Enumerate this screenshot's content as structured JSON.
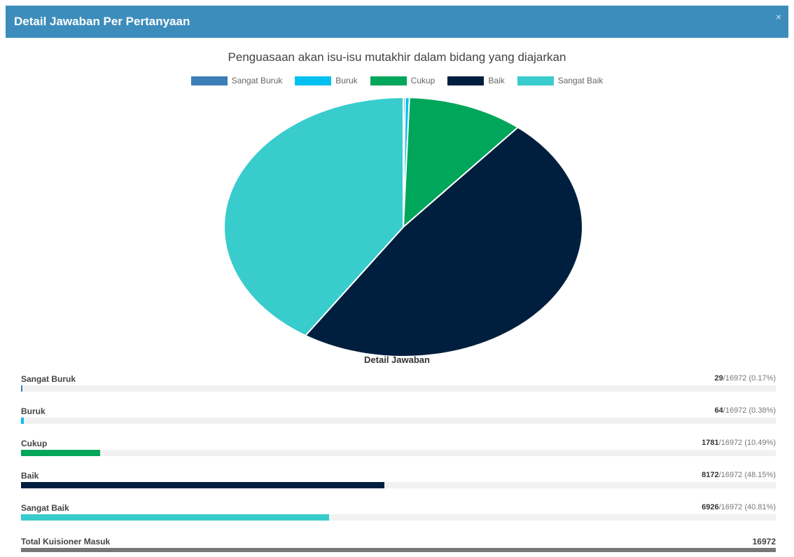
{
  "modal": {
    "title": "Detail Jawaban Per Pertanyaan",
    "close_label": "×"
  },
  "chart_data": {
    "type": "pie",
    "title": "Penguasaan akan isu-isu mutakhir dalam bidang yang diajarkan",
    "legend_position": "top",
    "categories": [
      "Sangat Buruk",
      "Buruk",
      "Cukup",
      "Baik",
      "Sangat Baik"
    ],
    "values": [
      29,
      64,
      1781,
      8172,
      6926
    ],
    "colors": [
      "#3b7fb6",
      "#00c0ef",
      "#00a65a",
      "#001f3f",
      "#39cccc"
    ]
  },
  "details": {
    "heading": "Detail Jawaban",
    "rows": [
      {
        "label": "Sangat Buruk",
        "count": "29",
        "rest": "/16972 (0.17%)",
        "fraction": 0.0017,
        "color": "#3b7fb6"
      },
      {
        "label": "Buruk",
        "count": "64",
        "rest": "/16972 (0.38%)",
        "fraction": 0.0038,
        "color": "#00c0ef"
      },
      {
        "label": "Cukup",
        "count": "1781",
        "rest": "/16972 (10.49%)",
        "fraction": 0.1049,
        "color": "#00a65a"
      },
      {
        "label": "Baik",
        "count": "8172",
        "rest": "/16972 (48.15%)",
        "fraction": 0.4815,
        "color": "#001f3f"
      },
      {
        "label": "Sangat Baik",
        "count": "6926",
        "rest": "/16972 (40.81%)",
        "fraction": 0.4081,
        "color": "#39cccc"
      }
    ],
    "total_label": "Total Kuisioner Masuk",
    "total_value": "16972"
  }
}
